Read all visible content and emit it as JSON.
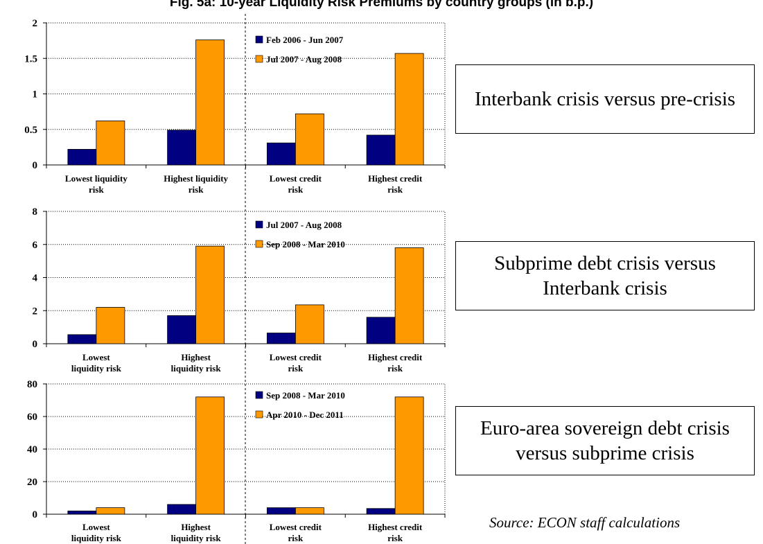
{
  "title": "Fig. 5a: 10-year Liquidity Risk Premiums by country groups (in b.p.)",
  "colors": {
    "series_1": "#000080",
    "series_2": "#FF9900"
  },
  "panels": [
    {
      "caption": "Interbank crisis versus pre-crisis"
    },
    {
      "caption": "Subprime debt crisis versus Interbank crisis"
    },
    {
      "caption": "Euro-area sovereign debt crisis versus subprime crisis"
    }
  ],
  "source": "Source: ECON staff calculations",
  "chart_data": [
    {
      "type": "bar",
      "categories": [
        "Lowest liquidity risk",
        "Highest liquidity risk",
        "Lowest credit risk",
        "Highest credit risk"
      ],
      "series": [
        {
          "name": "Feb 2006 - Jun 2007",
          "values": [
            0.22,
            0.49,
            0.31,
            0.42
          ]
        },
        {
          "name": "Jul 2007 - Aug 2008",
          "values": [
            0.62,
            1.76,
            0.72,
            1.57
          ]
        }
      ],
      "y_ticks": [
        "0",
        "0.5",
        "1",
        "1.5",
        "2"
      ],
      "ylim": [
        0,
        2
      ],
      "grid": true,
      "legend": "top-center"
    },
    {
      "type": "bar",
      "categories": [
        "Lowest liquidity risk",
        "Highest liquidity risk",
        "Lowest credit risk",
        "Highest credit risk"
      ],
      "series": [
        {
          "name": "Jul 2007 - Aug 2008",
          "values": [
            0.55,
            1.7,
            0.65,
            1.6
          ]
        },
        {
          "name": "Sep 2008 - Mar 2010",
          "values": [
            2.2,
            5.9,
            2.35,
            5.8
          ]
        }
      ],
      "y_ticks": [
        "0",
        "2",
        "4",
        "6",
        "8"
      ],
      "ylim": [
        0,
        8
      ],
      "grid": true,
      "legend": "top-center"
    },
    {
      "type": "bar",
      "categories": [
        "Lowest liquidity risk",
        "Highest liquidity risk",
        "Lowest credit risk",
        "Highest credit risk"
      ],
      "series": [
        {
          "name": "Sep 2008 - Mar 2010",
          "values": [
            2,
            6,
            4,
            3.5
          ]
        },
        {
          "name": "Apr 2010 - Dec 2011",
          "values": [
            4,
            72,
            4,
            72
          ]
        }
      ],
      "y_ticks": [
        "0",
        "20",
        "40",
        "60",
        "80"
      ],
      "ylim": [
        0,
        80
      ],
      "grid": true,
      "legend": "top-center"
    }
  ]
}
